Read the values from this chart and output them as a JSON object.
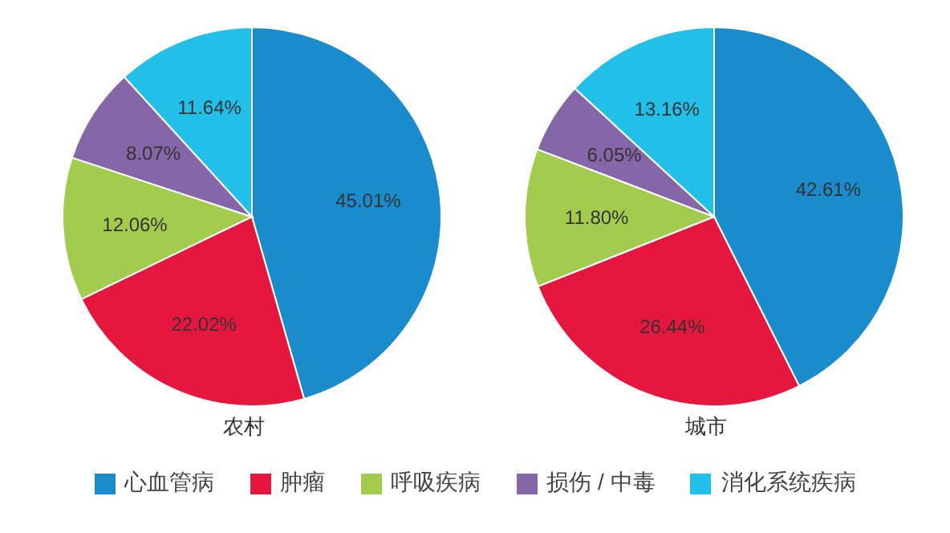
{
  "chart_data": [
    {
      "type": "pie",
      "xlabel": "农村",
      "categories": [
        "心血管病",
        "肿瘤",
        "呼吸疾病",
        "损伤 / 中毒",
        "消化系统疾病"
      ],
      "values": [
        45.01,
        22.02,
        12.06,
        8.07,
        11.64
      ],
      "value_labels": [
        "45.01%",
        "22.02%",
        "12.06%",
        "8.07%",
        "11.64%"
      ],
      "colors": [
        "#1a8ccc",
        "#e5173f",
        "#a3cc4f",
        "#8566a8",
        "#22bfe8"
      ],
      "legend": "bottom"
    },
    {
      "type": "pie",
      "xlabel": "城市",
      "categories": [
        null,
        null,
        null,
        null,
        null
      ],
      "values": [
        42.61,
        26.44,
        11.8,
        6.05,
        13.16
      ],
      "value_labels": [
        "42.61%",
        "26.44%",
        "11.80%",
        "6.05%",
        "13.16%"
      ],
      "colors": [
        "#1a8ccc",
        "#e5173f",
        "#a3cc4f",
        "#8566a8",
        "#22bfe8"
      ]
    }
  ]
}
